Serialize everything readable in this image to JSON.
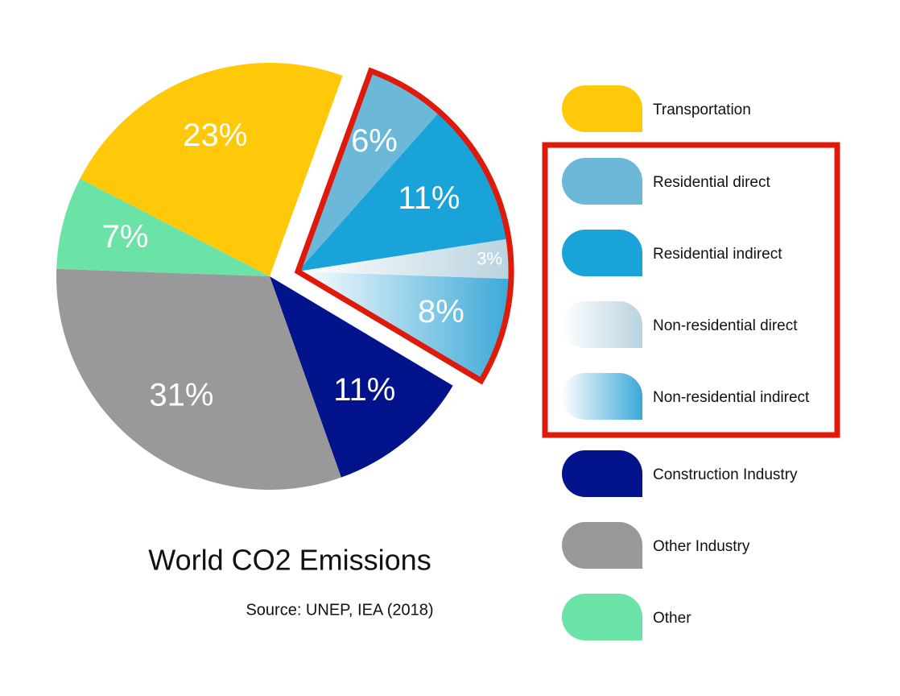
{
  "chart_data": {
    "type": "pie",
    "title": "World CO2 Emissions",
    "subtitle": "Source: UNEP, IEA (2018)",
    "categories": [
      "Transportation",
      "Residential direct",
      "Residential indirect",
      "Non-residential direct",
      "Non-residential indirect",
      "Construction Industry",
      "Other Industry",
      "Other"
    ],
    "values": [
      23,
      6,
      11,
      3,
      8,
      11,
      31,
      7
    ],
    "value_labels": [
      "23%",
      "6%",
      "11%",
      "3%",
      "8%",
      "11%",
      "31%",
      "7%"
    ],
    "colors": [
      "#ffc808",
      "#6cb8d8",
      "#1aa3d9",
      [
        "#ffffff",
        "#b9d3df"
      ],
      [
        "#ffffff",
        "#3aa8d8"
      ],
      "#03138c",
      "#999999",
      "#6be3a7"
    ],
    "highlight": [
      false,
      true,
      true,
      true,
      true,
      false,
      false,
      false
    ],
    "highlight_color": "#e01a0b"
  }
}
